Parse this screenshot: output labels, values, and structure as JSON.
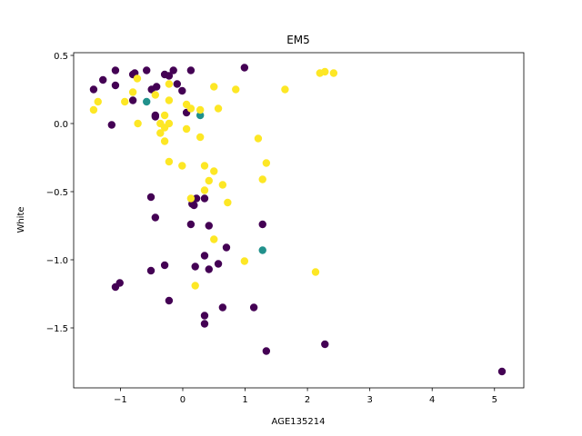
{
  "chart_data": {
    "type": "scatter",
    "title": "EM5",
    "x_label": "AGE135214",
    "y_label": "White",
    "xlim": [
      -1.75,
      5.47
    ],
    "ylim": [
      -1.94,
      0.52
    ],
    "xticks": [
      {
        "value": -1,
        "label": "−1"
      },
      0,
      1,
      2,
      3,
      4,
      5
    ],
    "yticks": [
      {
        "value": -1.5,
        "label": "−1.5"
      },
      {
        "value": -1.0,
        "label": "−1.0"
      },
      {
        "value": -0.5,
        "label": "−0.5"
      },
      {
        "value": 0.0,
        "label": "0.0"
      },
      {
        "value": 0.5,
        "label": "0.5"
      }
    ],
    "series": [
      {
        "color": "#440154",
        "x": [
          -1.43,
          -1.28,
          -1.08,
          -1.08,
          -1.14,
          -0.8,
          -0.77,
          -0.8,
          -0.58,
          -0.5,
          -0.42,
          -0.44,
          -0.44,
          -0.29,
          -0.22,
          -0.15,
          -0.09,
          -0.01,
          0.06,
          0.13,
          0.99,
          -0.51,
          -0.44,
          0.15,
          0.22,
          0.13,
          0.35,
          0.18,
          0.42,
          0.7,
          1.28,
          0.35,
          0.2,
          0.42,
          0.57,
          -0.51,
          -0.29,
          -1.08,
          -1.01,
          -0.22,
          0.64,
          0.35,
          0.35,
          1.14,
          1.34,
          2.28,
          5.12
        ],
        "y": [
          0.25,
          0.32,
          0.39,
          0.28,
          -0.01,
          0.36,
          0.37,
          0.17,
          0.39,
          0.25,
          0.27,
          0.06,
          0.05,
          0.36,
          0.35,
          0.39,
          0.29,
          0.24,
          0.08,
          0.39,
          0.41,
          -0.54,
          -0.69,
          -0.59,
          -0.55,
          -0.74,
          -0.55,
          -0.6,
          -0.75,
          -0.91,
          -0.74,
          -0.97,
          -1.05,
          -1.07,
          -1.03,
          -1.08,
          -1.04,
          -1.2,
          -1.17,
          -1.3,
          -1.35,
          -1.41,
          -1.47,
          -1.35,
          -1.67,
          -1.62,
          -1.82
        ]
      },
      {
        "color": "#21918c",
        "x": [
          -0.58,
          0.28,
          1.28
        ],
        "y": [
          0.16,
          0.06,
          -0.93
        ]
      },
      {
        "color": "#fde725",
        "x": [
          -1.43,
          -1.36,
          -0.93,
          -0.8,
          -0.73,
          -0.72,
          -0.44,
          -0.36,
          -0.29,
          -0.29,
          -0.29,
          -0.22,
          -0.22,
          -0.22,
          -0.36,
          -0.22,
          -0.01,
          0.06,
          0.06,
          0.13,
          0.28,
          0.28,
          0.5,
          0.57,
          0.85,
          0.35,
          0.5,
          0.42,
          0.35,
          0.13,
          0.64,
          0.72,
          0.5,
          0.99,
          0.2,
          1.21,
          1.34,
          1.28,
          1.64,
          2.2,
          2.28,
          2.42,
          2.13
        ],
        "y": [
          0.1,
          0.16,
          0.16,
          0.23,
          0.33,
          0.0,
          0.21,
          -0.07,
          0.06,
          -0.13,
          -0.03,
          0.0,
          0.17,
          0.29,
          0.0,
          -0.28,
          -0.31,
          0.14,
          -0.04,
          0.11,
          0.1,
          -0.1,
          0.27,
          0.11,
          0.25,
          -0.31,
          -0.35,
          -0.42,
          -0.49,
          -0.55,
          -0.45,
          -0.58,
          -0.85,
          -1.01,
          -1.19,
          -0.11,
          -0.29,
          -0.41,
          0.25,
          0.37,
          0.38,
          0.37,
          -1.09
        ]
      }
    ]
  }
}
